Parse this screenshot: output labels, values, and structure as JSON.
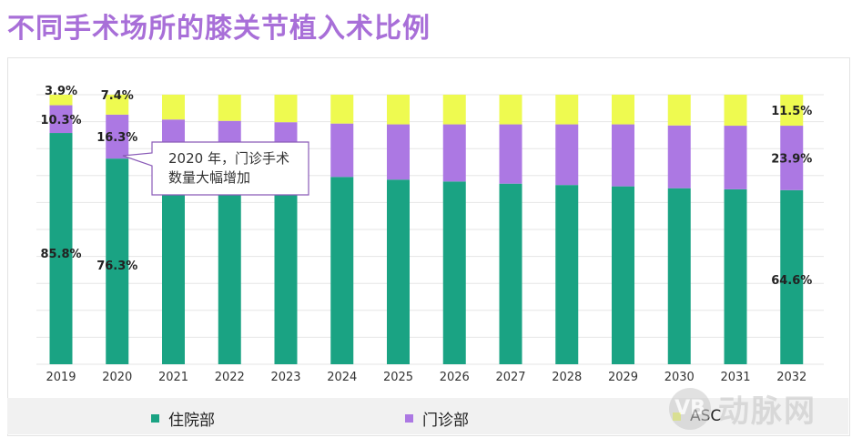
{
  "title": "不同手术场所的膝关节植入术比例",
  "chart_data": {
    "type": "bar",
    "stacked": true,
    "categories": [
      "2019",
      "2020",
      "2021",
      "2022",
      "2023",
      "2024",
      "2025",
      "2026",
      "2027",
      "2028",
      "2029",
      "2030",
      "2031",
      "2032"
    ],
    "series": [
      {
        "name": "住院部",
        "color": "#1aa383",
        "values": [
          85.8,
          76.3,
          74.0,
          72.5,
          71.0,
          69.5,
          68.5,
          67.8,
          67.0,
          66.5,
          66.0,
          65.3,
          64.9,
          64.6
        ]
      },
      {
        "name": "门诊部",
        "color": "#ac78e3",
        "values": [
          10.3,
          16.3,
          16.8,
          17.8,
          18.8,
          19.8,
          20.5,
          21.2,
          22.0,
          22.5,
          23.0,
          23.3,
          23.6,
          23.9
        ]
      },
      {
        "name": "ASC",
        "color": "#eefa50",
        "values": [
          3.9,
          7.4,
          9.2,
          9.7,
          10.2,
          10.7,
          11.0,
          11.0,
          11.0,
          11.0,
          11.0,
          11.4,
          11.5,
          11.5
        ]
      }
    ],
    "ylim": [
      0,
      100
    ],
    "xlabel": "",
    "ylabel": "",
    "grid": true,
    "legend_position": "bottom",
    "data_labels": [
      {
        "category": "2019",
        "series": "ASC",
        "text": "3.9%"
      },
      {
        "category": "2019",
        "series": "门诊部",
        "text": "10.3%"
      },
      {
        "category": "2019",
        "series": "住院部",
        "text": "85.8%"
      },
      {
        "category": "2020",
        "series": "ASC",
        "text": "7.4%"
      },
      {
        "category": "2020",
        "series": "门诊部",
        "text": "16.3%"
      },
      {
        "category": "2020",
        "series": "住院部",
        "text": "76.3%"
      },
      {
        "category": "2032",
        "series": "ASC",
        "text": "11.5%"
      },
      {
        "category": "2032",
        "series": "门诊部",
        "text": "23.9%"
      },
      {
        "category": "2032",
        "series": "住院部",
        "text": "64.6%"
      }
    ],
    "annotation": {
      "line1": "2020 年，门诊手术",
      "line2": "数量大幅增加"
    }
  },
  "legend": {
    "inpatient": "住院部",
    "outpatient": "门诊部",
    "asc": "ASC"
  },
  "watermark": {
    "logo": "VB",
    "text": "动脉网"
  }
}
